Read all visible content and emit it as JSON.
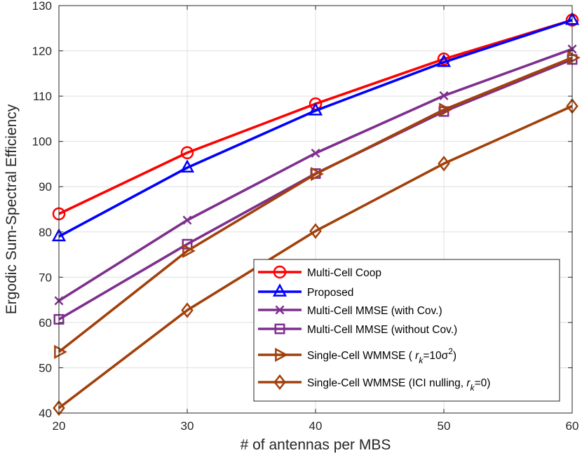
{
  "chart_data": {
    "type": "line",
    "xlabel": "# of antennas per MBS",
    "ylabel": "Ergodic Sum-Spectral Efficiency",
    "x": [
      20,
      30,
      40,
      50,
      60
    ],
    "xlim": [
      20,
      60
    ],
    "ylim": [
      40,
      130
    ],
    "xticks": [
      "20",
      "30",
      "40",
      "50",
      "60"
    ],
    "yticks": [
      "40",
      "50",
      "60",
      "70",
      "80",
      "90",
      "100",
      "110",
      "120",
      "130"
    ],
    "grid": true,
    "legend_location": "bottom-right",
    "series": [
      {
        "name": "Multi-Cell Coop",
        "values": [
          84.0,
          97.5,
          108.3,
          118.2,
          126.8
        ],
        "color": "#ff0000",
        "marker": "circle"
      },
      {
        "name": "Proposed",
        "values": [
          79.0,
          94.2,
          106.8,
          117.5,
          126.8
        ],
        "color": "#0000ff",
        "marker": "triangle-up"
      },
      {
        "name": "Multi-Cell MMSE (with Cov.)",
        "values": [
          64.8,
          82.6,
          97.4,
          110.1,
          120.4
        ],
        "color": "#7e2f8e",
        "marker": "x"
      },
      {
        "name": "Multi-Cell MMSE (without Cov.)",
        "values": [
          60.7,
          77.3,
          92.9,
          106.6,
          118.1
        ],
        "color": "#7e2f8e",
        "marker": "square"
      },
      {
        "name": "Single-Cell WMMSE ( r_k=10σ^2)",
        "values": [
          53.5,
          75.8,
          92.8,
          107.0,
          118.5
        ],
        "color": "#a2400a",
        "marker": "triangle-right"
      },
      {
        "name": "Single-Cell WMMSE (ICI nulling,  r_k=0)",
        "values": [
          41.1,
          62.7,
          80.2,
          95.1,
          107.8
        ],
        "color": "#a2400a",
        "marker": "diamond"
      }
    ]
  }
}
